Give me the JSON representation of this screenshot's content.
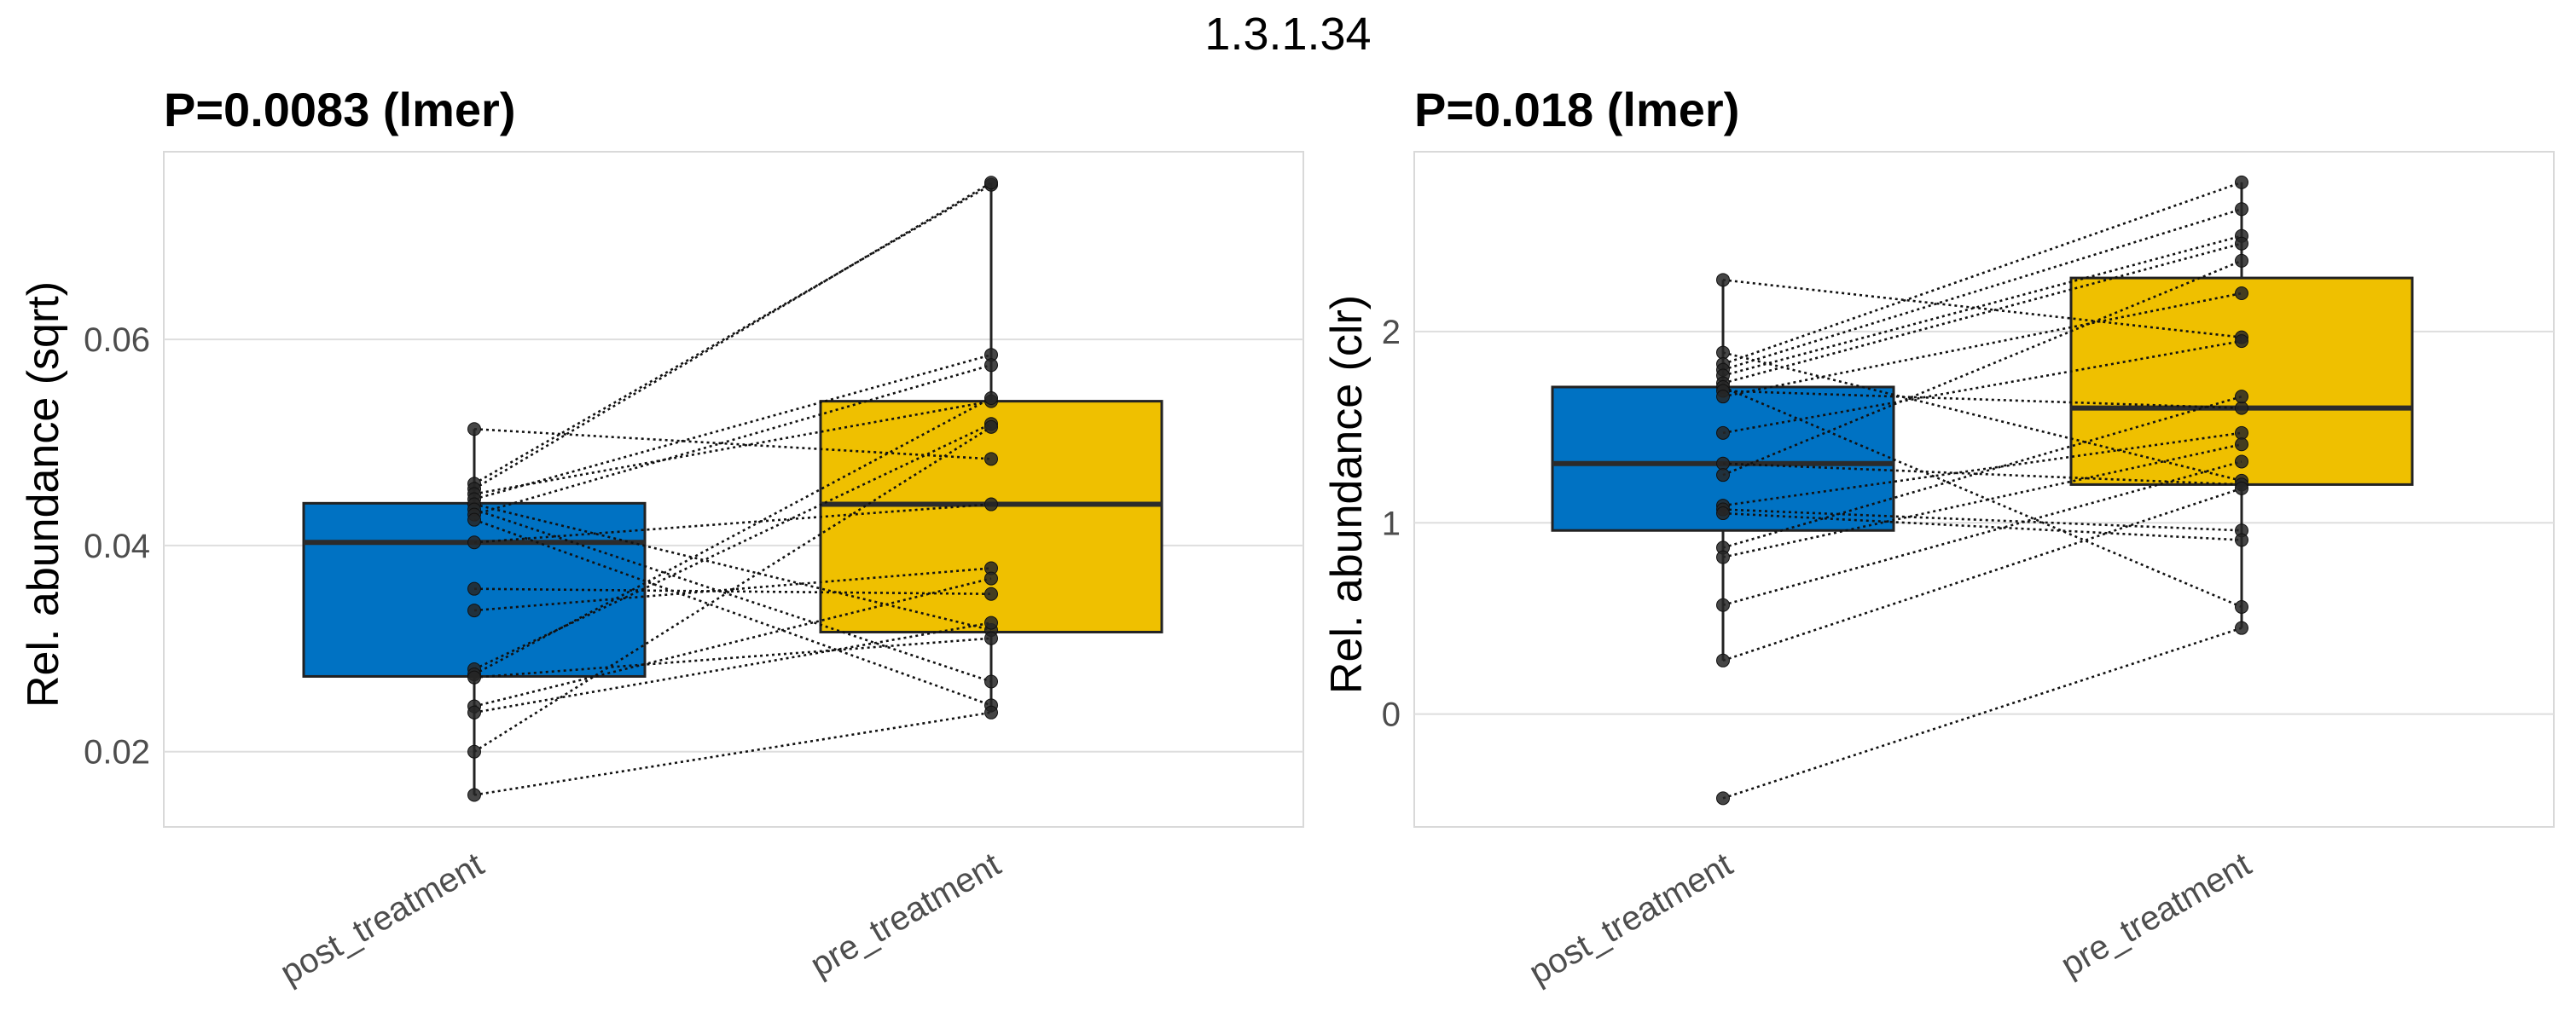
{
  "figure_title": "1.3.1.34",
  "chart_data": [
    {
      "type": "box",
      "title": "P=0.0083 (lmer)",
      "xlabel": "",
      "ylabel": "Rel. abundance (sqrt)",
      "categories": [
        "post_treatment",
        "pre_treatment"
      ],
      "colors": [
        "#0072C3",
        "#EFC000"
      ],
      "ylim": [
        0.0127,
        0.0782
      ],
      "yticks": [
        0.02,
        0.04,
        0.06
      ],
      "ytick_labels": [
        "0.02",
        "0.04",
        "0.06"
      ],
      "boxes": [
        {
          "group": "post_treatment",
          "q1": 0.0273,
          "median": 0.0403,
          "q3": 0.0441,
          "whisker_low": 0.0158,
          "whisker_high": 0.0513
        },
        {
          "group": "pre_treatment",
          "q1": 0.0316,
          "median": 0.044,
          "q3": 0.054,
          "whisker_low": 0.0238,
          "whisker_high": 0.0752
        }
      ],
      "pairs": [
        [
          0.0513,
          0.0484
        ],
        [
          0.046,
          0.075
        ],
        [
          0.0455,
          0.0752
        ],
        [
          0.045,
          0.054
        ],
        [
          0.0445,
          0.0585
        ],
        [
          0.044,
          0.0318
        ],
        [
          0.0435,
          0.0268
        ],
        [
          0.043,
          0.0575
        ],
        [
          0.0425,
          0.0245
        ],
        [
          0.0403,
          0.044
        ],
        [
          0.0358,
          0.0353
        ],
        [
          0.0337,
          0.0378
        ],
        [
          0.028,
          0.0518
        ],
        [
          0.0275,
          0.0543
        ],
        [
          0.0272,
          0.031
        ],
        [
          0.0244,
          0.0368
        ],
        [
          0.0238,
          0.0325
        ],
        [
          0.02,
          0.0515
        ],
        [
          0.0158,
          0.0238
        ]
      ]
    },
    {
      "type": "box",
      "title": "P=0.018 (lmer)",
      "xlabel": "",
      "ylabel": "Rel. abundance (clr)",
      "categories": [
        "post_treatment",
        "pre_treatment"
      ],
      "colors": [
        "#0072C3",
        "#EFC000"
      ],
      "ylim": [
        -0.59,
        2.94
      ],
      "yticks": [
        0,
        1,
        2
      ],
      "ytick_labels": [
        "0",
        "1",
        "2"
      ],
      "boxes": [
        {
          "group": "post_treatment",
          "q1": 0.96,
          "median": 1.31,
          "q3": 1.71,
          "whisker_low": 0.28,
          "whisker_high": 2.27
        },
        {
          "group": "pre_treatment",
          "q1": 1.2,
          "median": 1.6,
          "q3": 2.28,
          "whisker_low": 0.45,
          "whisker_high": 2.78
        }
      ],
      "pairs": [
        [
          2.27,
          1.97
        ],
        [
          1.89,
          1.22
        ],
        [
          1.83,
          2.78
        ],
        [
          1.8,
          2.64
        ],
        [
          1.77,
          2.5
        ],
        [
          1.73,
          2.46
        ],
        [
          1.71,
          0.56
        ],
        [
          1.69,
          1.6
        ],
        [
          1.66,
          2.2
        ],
        [
          1.47,
          1.95
        ],
        [
          1.31,
          1.2
        ],
        [
          1.25,
          2.37
        ],
        [
          1.09,
          1.47
        ],
        [
          1.07,
          0.96
        ],
        [
          1.05,
          0.91
        ],
        [
          0.87,
          1.66
        ],
        [
          0.82,
          1.41
        ],
        [
          0.57,
          1.32
        ],
        [
          0.28,
          1.18
        ],
        [
          -0.44,
          0.45
        ]
      ]
    }
  ]
}
